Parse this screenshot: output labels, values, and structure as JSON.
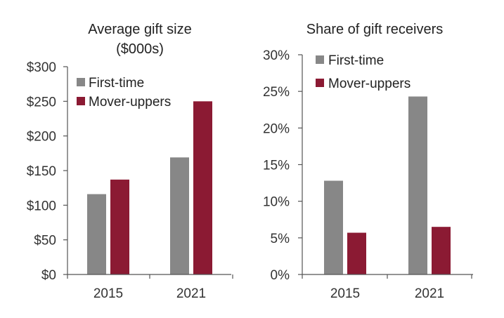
{
  "colors": {
    "first_time": "#878787",
    "mover_uppers": "#8b1a33",
    "axis": "#555555"
  },
  "chart_data": [
    {
      "type": "bar",
      "title": "Average gift size",
      "subtitle": "($000s)",
      "xlabel": "",
      "ylabel": "",
      "categories": [
        "2015",
        "2021"
      ],
      "ylim": [
        0,
        300
      ],
      "yticks": [
        "$0",
        "$50",
        "$100",
        "$150",
        "$200",
        "$250",
        "$300"
      ],
      "series": [
        {
          "name": "First-time",
          "values": [
            116,
            169
          ]
        },
        {
          "name": "Mover-uppers",
          "values": [
            137,
            250
          ]
        }
      ],
      "legend": "top-left",
      "grid": false
    },
    {
      "type": "bar",
      "title": "Share of gift receivers",
      "xlabel": "",
      "ylabel": "",
      "categories": [
        "2015",
        "2021"
      ],
      "ylim": [
        0,
        30
      ],
      "yticks": [
        "0%",
        "5%",
        "10%",
        "15%",
        "20%",
        "25%",
        "30%"
      ],
      "series": [
        {
          "name": "First-time",
          "values": [
            12.8,
            24.3
          ]
        },
        {
          "name": "Mover-uppers",
          "values": [
            5.7,
            6.5
          ]
        }
      ],
      "legend": "top-left",
      "grid": false
    }
  ]
}
